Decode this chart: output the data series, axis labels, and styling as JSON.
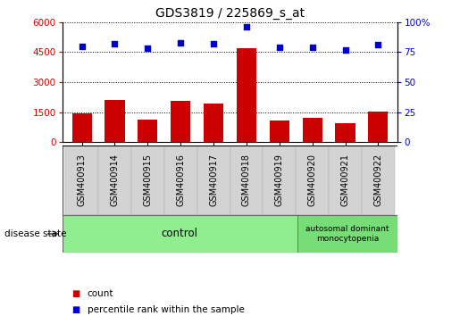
{
  "title": "GDS3819 / 225869_s_at",
  "categories": [
    "GSM400913",
    "GSM400914",
    "GSM400915",
    "GSM400916",
    "GSM400917",
    "GSM400918",
    "GSM400919",
    "GSM400920",
    "GSM400921",
    "GSM400922"
  ],
  "counts": [
    1450,
    2100,
    1150,
    2050,
    1950,
    4700,
    1100,
    1200,
    950,
    1550
  ],
  "percentiles": [
    80,
    82,
    78,
    83,
    82,
    96,
    79,
    79,
    77,
    81
  ],
  "left_ylim": [
    0,
    6000
  ],
  "right_ylim": [
    0,
    100
  ],
  "left_yticks": [
    0,
    1500,
    3000,
    4500,
    6000
  ],
  "right_yticks": [
    0,
    25,
    50,
    75,
    100
  ],
  "right_yticklabels": [
    "0",
    "25",
    "50",
    "75",
    "100%"
  ],
  "bar_color": "#cc0000",
  "dot_color": "#0000cc",
  "grid_color": "#000000",
  "control_color": "#90ee90",
  "disease_color": "#77dd77",
  "sample_box_color": "#d3d3d3",
  "tick_label_color_left": "#cc0000",
  "tick_label_color_right": "#0000cc",
  "control_count": 7,
  "disease_label": "autosomal dominant\nmonocytopenia",
  "control_label": "control",
  "disease_state_label": "disease state",
  "legend_count_label": "count",
  "legend_pct_label": "percentile rank within the sample",
  "n_samples": 10
}
